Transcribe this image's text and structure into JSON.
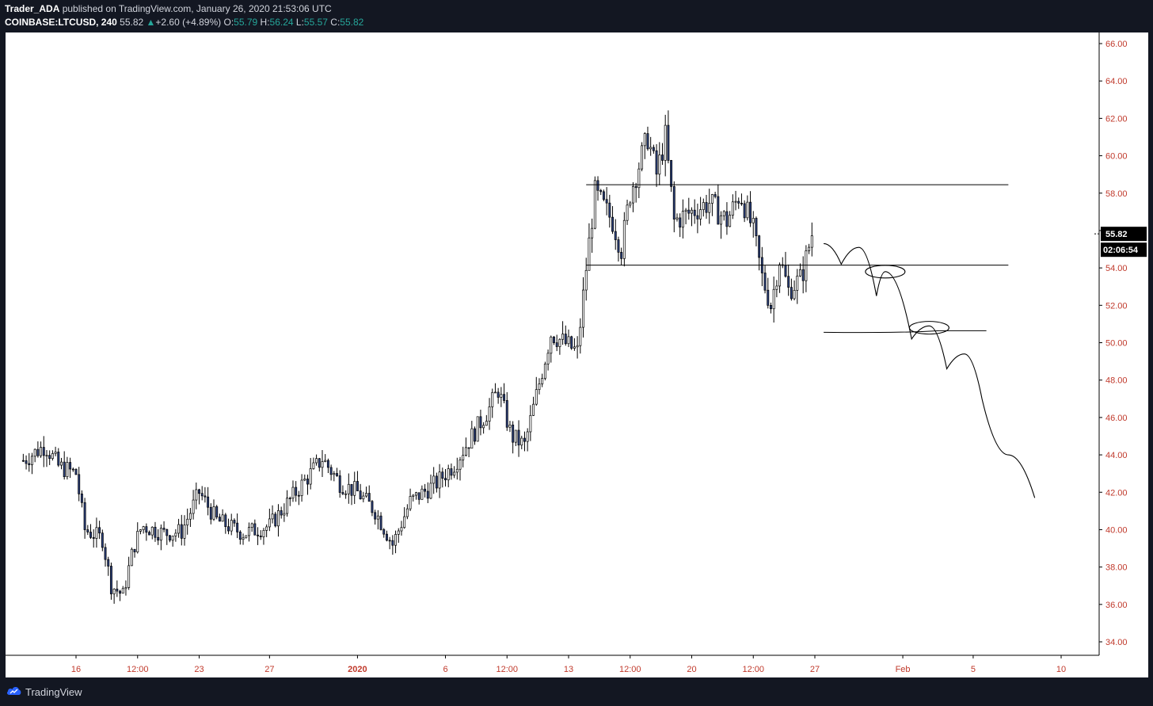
{
  "header": {
    "author": "Trader_ADA",
    "published_text": " published on TradingView.com, January 26, 2020 21:53:06 UTC",
    "symbol": "COINBASE:LTCUSD, 240",
    "last": "55.82",
    "change_arrow": "▲",
    "change": "+2.60 (+4.89%)",
    "o_label": "O:",
    "o_value": "55.79",
    "h_label": "H:",
    "h_value": "56.24",
    "l_label": "L:",
    "l_value": "55.57",
    "c_label": "C:",
    "c_value": "55.82"
  },
  "footer": {
    "brand": "TradingView",
    "logo_icon": "tradingview-cloud-icon"
  },
  "colors": {
    "background": "#131722",
    "chart_bg": "#ffffff",
    "axis_text": "#c0392b",
    "candle_up": "#ffffff",
    "candle_down": "#2a3f7a",
    "wick": "#000000",
    "positive": "#26a69a"
  },
  "chart_data": {
    "type": "candlestick",
    "symbol": "COINBASE:LTCUSD",
    "interval": "240",
    "xlabel": "",
    "ylabel": "",
    "x_range": [
      "2019-12-13",
      "2020-02-11"
    ],
    "ylim": [
      33,
      66.8
    ],
    "y_ticks": [
      "66.00",
      "64.00",
      "62.00",
      "60.00",
      "58.00",
      "56.00",
      "54.00",
      "52.00",
      "50.00",
      "48.00",
      "46.00",
      "44.00",
      "42.00",
      "40.00",
      "38.00",
      "36.00",
      "34.00"
    ],
    "x_ticks": [
      {
        "date": "2019-12-16",
        "label": "16"
      },
      {
        "date": "2019-12-19T12:00",
        "label": "12:00"
      },
      {
        "date": "2019-12-23",
        "label": "23"
      },
      {
        "date": "2019-12-27",
        "label": "27"
      },
      {
        "date": "2020-01-01",
        "label": "2020"
      },
      {
        "date": "2020-01-06",
        "label": "6"
      },
      {
        "date": "2020-01-09T12:00",
        "label": "12:00"
      },
      {
        "date": "2020-01-13",
        "label": "13"
      },
      {
        "date": "2020-01-16T12:00",
        "label": "12:00"
      },
      {
        "date": "2020-01-20",
        "label": "20"
      },
      {
        "date": "2020-01-23T12:00",
        "label": "12:00"
      },
      {
        "date": "2020-01-27",
        "label": "27"
      },
      {
        "date": "2020-02-01",
        "label": "Feb"
      },
      {
        "date": "2020-02-05",
        "label": "5"
      },
      {
        "date": "2020-02-10",
        "label": "10"
      }
    ],
    "price_path": [
      {
        "date": "2019-12-13T00:00",
        "close": 43.7
      },
      {
        "date": "2019-12-14T06:00",
        "close": 44.5
      },
      {
        "date": "2019-12-15T00:00",
        "close": 43.4
      },
      {
        "date": "2019-12-16T00:00",
        "close": 43.0
      },
      {
        "date": "2019-12-16T12:00",
        "close": 40.0
      },
      {
        "date": "2019-12-17T12:00",
        "close": 39.5
      },
      {
        "date": "2019-12-18T00:00",
        "close": 37.0
      },
      {
        "date": "2019-12-18T16:00",
        "close": 36.5
      },
      {
        "date": "2019-12-19T06:00",
        "close": 39.0
      },
      {
        "date": "2019-12-19T18:00",
        "close": 40.2
      },
      {
        "date": "2019-12-21T00:00",
        "close": 39.8
      },
      {
        "date": "2019-12-22T00:00",
        "close": 39.9
      },
      {
        "date": "2019-12-23T00:00",
        "close": 42.0
      },
      {
        "date": "2019-12-24T00:00",
        "close": 40.5
      },
      {
        "date": "2019-12-25T12:00",
        "close": 39.8
      },
      {
        "date": "2019-12-27T00:00",
        "close": 40.2
      },
      {
        "date": "2019-12-28T12:00",
        "close": 42.0
      },
      {
        "date": "2019-12-30T00:00",
        "close": 43.8
      },
      {
        "date": "2019-12-31T00:00",
        "close": 42.5
      },
      {
        "date": "2020-01-01T00:00",
        "close": 42.0
      },
      {
        "date": "2020-01-02T00:00",
        "close": 41.0
      },
      {
        "date": "2020-01-03T00:00",
        "close": 39.2
      },
      {
        "date": "2020-01-04T00:00",
        "close": 41.5
      },
      {
        "date": "2020-01-05T12:00",
        "close": 42.5
      },
      {
        "date": "2020-01-06T12:00",
        "close": 43.5
      },
      {
        "date": "2020-01-07T12:00",
        "close": 45.0
      },
      {
        "date": "2020-01-08T12:00",
        "close": 46.5
      },
      {
        "date": "2020-01-09T00:00",
        "close": 47.5
      },
      {
        "date": "2020-01-09T18:00",
        "close": 45.0
      },
      {
        "date": "2020-01-10T12:00",
        "close": 44.5
      },
      {
        "date": "2020-01-11T12:00",
        "close": 48.5
      },
      {
        "date": "2020-01-12T00:00",
        "close": 50.5
      },
      {
        "date": "2020-01-12T18:00",
        "close": 50.0
      },
      {
        "date": "2020-01-13T12:00",
        "close": 49.5
      },
      {
        "date": "2020-01-14T00:00",
        "close": 54.0
      },
      {
        "date": "2020-01-14T12:00",
        "close": 58.0
      },
      {
        "date": "2020-01-15T12:00",
        "close": 56.5
      },
      {
        "date": "2020-01-16T00:00",
        "close": 55.0
      },
      {
        "date": "2020-01-16T12:00",
        "close": 58.0
      },
      {
        "date": "2020-01-17T00:00",
        "close": 59.5
      },
      {
        "date": "2020-01-17T12:00",
        "close": 61.0
      },
      {
        "date": "2020-01-18T00:00",
        "close": 59.0
      },
      {
        "date": "2020-01-18T12:00",
        "close": 61.0
      },
      {
        "date": "2020-01-19T00:00",
        "close": 56.5
      },
      {
        "date": "2020-01-20T00:00",
        "close": 57.0
      },
      {
        "date": "2020-01-21T00:00",
        "close": 57.5
      },
      {
        "date": "2020-01-22T00:00",
        "close": 56.5
      },
      {
        "date": "2020-01-22T18:00",
        "close": 58.0
      },
      {
        "date": "2020-01-23T12:00",
        "close": 56.0
      },
      {
        "date": "2020-01-24T00:00",
        "close": 53.5
      },
      {
        "date": "2020-01-24T12:00",
        "close": 52.0
      },
      {
        "date": "2020-01-25T00:00",
        "close": 54.5
      },
      {
        "date": "2020-01-25T12:00",
        "close": 52.8
      },
      {
        "date": "2020-01-26T06:00",
        "close": 53.5
      },
      {
        "date": "2020-01-26T20:00",
        "close": 55.82
      }
    ],
    "horizontal_lines": [
      {
        "price": 58.45,
        "from": "2020-01-14T00:00",
        "to": "2020-02-07T00:00"
      },
      {
        "price": 54.15,
        "from": "2020-01-14T00:00",
        "to": "2020-02-07T00:00"
      }
    ],
    "drawn_forecast_path": [
      {
        "date": "2020-01-27T12:00",
        "price": 55.3
      },
      {
        "date": "2020-01-28T12:00",
        "price": 54.2
      },
      {
        "date": "2020-01-29T12:00",
        "price": 55.1
      },
      {
        "date": "2020-01-30T12:00",
        "price": 52.5
      },
      {
        "date": "2020-01-31T00:00",
        "price": 53.8
      },
      {
        "date": "2020-02-01T12:00",
        "price": 50.2
      },
      {
        "date": "2020-02-02T12:00",
        "price": 50.9
      },
      {
        "date": "2020-02-03T12:00",
        "price": 48.6
      },
      {
        "date": "2020-02-04T12:00",
        "price": 49.4
      },
      {
        "date": "2020-02-05T12:00",
        "price": 47.0
      },
      {
        "date": "2020-02-07T00:00",
        "price": 44.0
      },
      {
        "date": "2020-02-08T12:00",
        "price": 41.7
      }
    ],
    "drawn_support_line": {
      "price": 50.6,
      "from": "2020-01-27T12:00",
      "to": "2020-02-05T18:00"
    },
    "drawn_circles": [
      {
        "date": "2020-01-31T00:00",
        "price": 53.8
      },
      {
        "date": "2020-02-02T12:00",
        "price": 50.8
      }
    ],
    "last_price_label": "55.82",
    "countdown_label": "02:06:54"
  }
}
